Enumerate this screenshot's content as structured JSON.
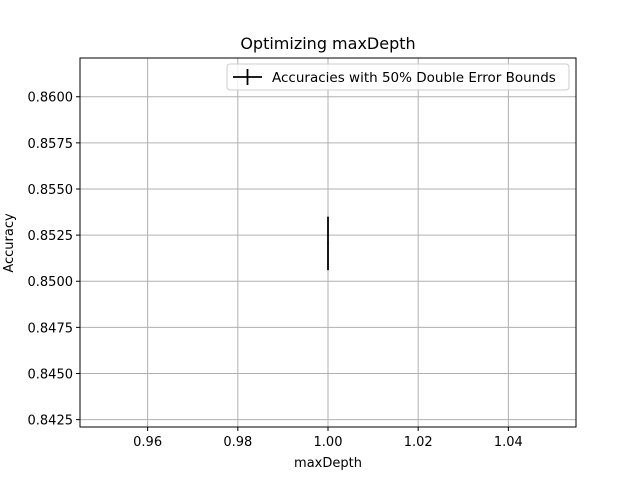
{
  "chart_data": {
    "type": "scatter",
    "title": "Optimizing maxDepth",
    "xlabel": "maxDepth",
    "ylabel": "Accuracy",
    "xlim": [
      0.945,
      1.055
    ],
    "ylim": [
      0.8421,
      0.8621
    ],
    "x_ticks": [
      0.96,
      0.98,
      1.0,
      1.02,
      1.04
    ],
    "x_tick_labels": [
      "0.96",
      "0.98",
      "1.00",
      "1.02",
      "1.04"
    ],
    "y_ticks": [
      0.8425,
      0.845,
      0.8475,
      0.85,
      0.8525,
      0.855,
      0.8575,
      0.86
    ],
    "y_tick_labels": [
      "0.8425",
      "0.8450",
      "0.8475",
      "0.8500",
      "0.8525",
      "0.8550",
      "0.8575",
      "0.8600"
    ],
    "grid": true,
    "legend": {
      "position": "top-right",
      "entries": [
        "Accuracies with 50% Double Error Bounds"
      ]
    },
    "series": [
      {
        "name": "Accuracies with 50% Double Error Bounds",
        "x": [
          1.0
        ],
        "y": [
          0.85205
        ],
        "yerr_low": [
          0.8506
        ],
        "yerr_high": [
          0.8535
        ],
        "color": "#000000"
      }
    ]
  }
}
